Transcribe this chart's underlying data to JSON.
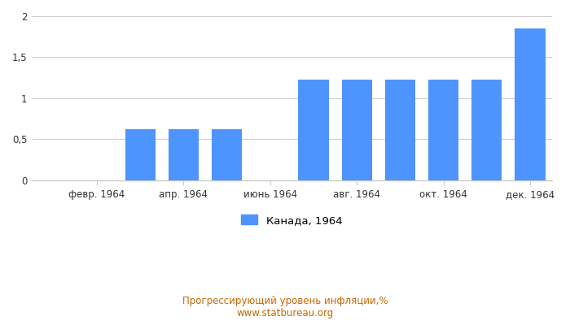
{
  "month_positions": [
    1,
    2,
    3,
    4,
    5,
    6,
    7,
    8,
    9,
    10,
    11,
    12
  ],
  "values": [
    0,
    0,
    0.62,
    0.62,
    0.62,
    0,
    1.23,
    1.23,
    1.23,
    1.23,
    1.23,
    1.85
  ],
  "xtick_positions": [
    2,
    4,
    6,
    8,
    10,
    12
  ],
  "xtick_labels": [
    "февр. 1964",
    "апр. 1964",
    "июнь 1964",
    "авг. 1964",
    "окт. 1964",
    "дек. 1964"
  ],
  "bar_color": "#4d94ff",
  "ylim": [
    0,
    2.0
  ],
  "yticks": [
    0,
    0.5,
    1.0,
    1.5,
    2.0
  ],
  "ytick_labels": [
    "0",
    "0,5",
    "1",
    "1,5",
    "2"
  ],
  "legend_label": "Канада, 1964",
  "title_line1": "Прогрессирующий уровень инфляции,%",
  "title_line2": "www.statbureau.org",
  "title_color": "#cc6600",
  "background_color": "#ffffff",
  "grid_color": "#cccccc",
  "bar_width": 0.7
}
